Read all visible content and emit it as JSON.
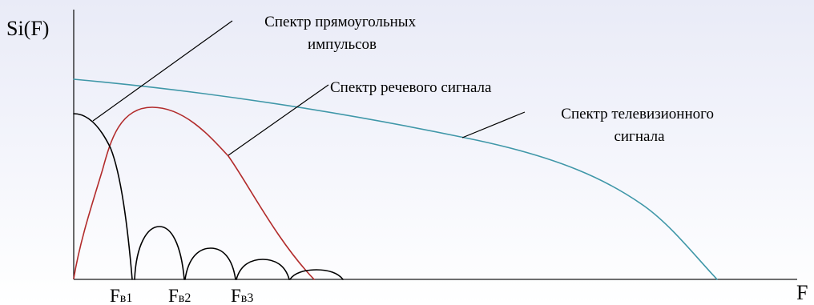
{
  "axes": {
    "y_label": "Si(F)",
    "x_label": "F"
  },
  "ticks": [
    {
      "main": "F",
      "sub": "в1"
    },
    {
      "main": "F",
      "sub": "в2"
    },
    {
      "main": "F",
      "sub": "в3"
    }
  ],
  "labels": {
    "rect": [
      "Спектр прямоугольных",
      "импульсов"
    ],
    "speech": [
      "Спектр речевого сигнала"
    ],
    "tv": [
      "Спектр телевизионного",
      "сигнала"
    ]
  },
  "colors": {
    "axis": "#1a1a1a",
    "rect": "#000000",
    "speech": "#b22b2b",
    "tv": "#3f97a8"
  }
}
